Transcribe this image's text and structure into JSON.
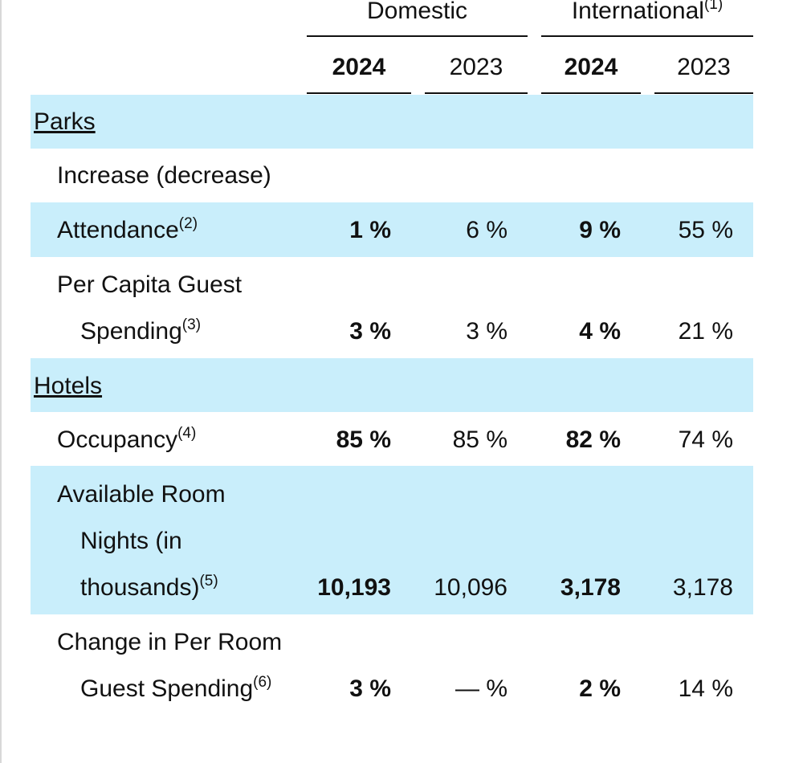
{
  "header": {
    "groups": [
      {
        "label": "Domestic"
      },
      {
        "label": "International",
        "note": "(1)"
      }
    ],
    "years": [
      "2024",
      "2023",
      "2024",
      "2023"
    ]
  },
  "rows": [
    {
      "section": "Parks"
    },
    {
      "label_lines": [
        "Increase (decrease)"
      ]
    },
    {
      "label_lines": [
        "Attendance"
      ],
      "note": "(2)",
      "values": [
        "1 %",
        "6 %",
        "9 %",
        "55 %"
      ]
    },
    {
      "label_lines": [
        "Per Capita Guest",
        "Spending"
      ],
      "note": "(3)",
      "values": [
        "3 %",
        "3 %",
        "4 %",
        "21 %"
      ]
    },
    {
      "section": "Hotels"
    },
    {
      "label_lines": [
        "Occupancy"
      ],
      "note": "(4)",
      "values": [
        "85 %",
        "85 %",
        "82 %",
        "74 %"
      ]
    },
    {
      "label_lines": [
        "Available Room",
        "Nights (in",
        "thousands)"
      ],
      "note": "(5)",
      "values": [
        "10,193",
        "10,096",
        "3,178",
        "3,178"
      ]
    },
    {
      "label_lines": [
        "Change in Per Room",
        "Guest Spending"
      ],
      "note": "(6)",
      "values": [
        "3 %",
        "— %",
        "2 %",
        "14 %"
      ]
    }
  ]
}
